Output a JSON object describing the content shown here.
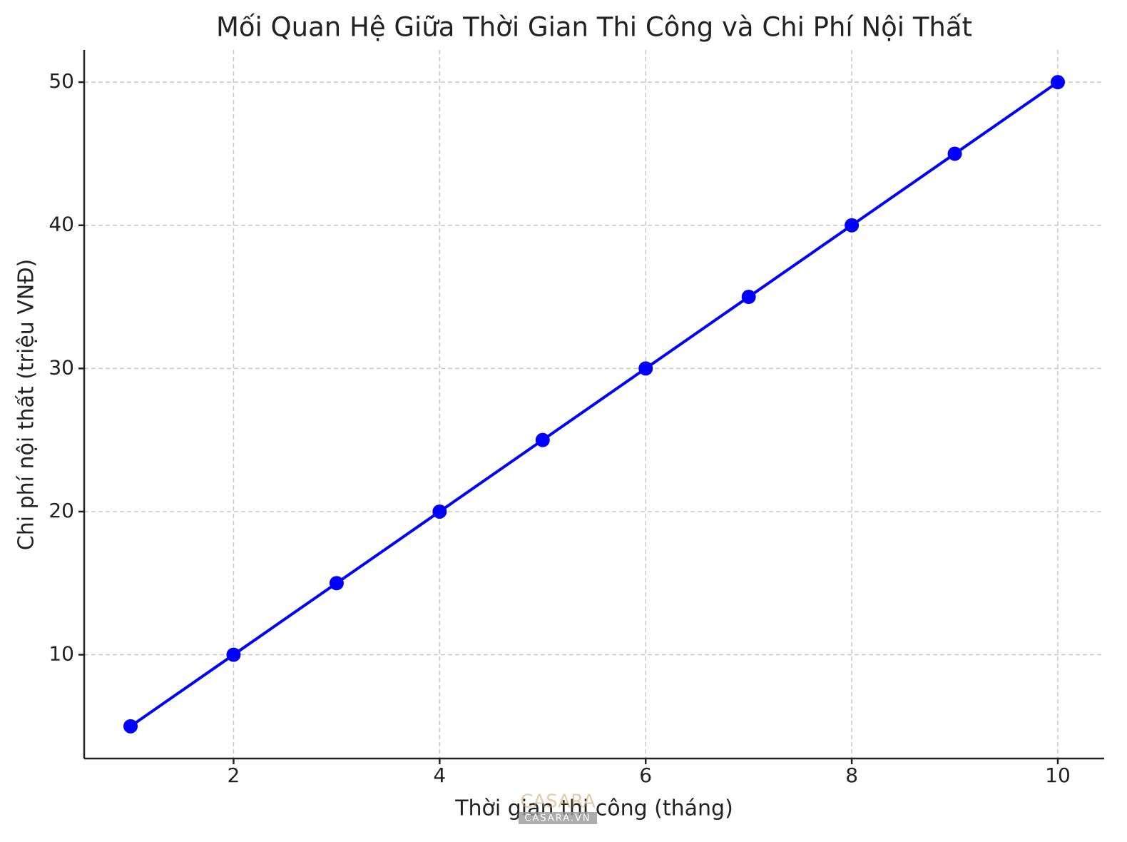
{
  "chart_data": {
    "type": "line",
    "title": "Mối Quan Hệ Giữa Thời Gian Thi Công và Chi Phí Nội Thất",
    "x_label": "Thời gian thi công (tháng)",
    "y_label": "Chi phí nội thất (triệu VNĐ)",
    "x": [
      1,
      2,
      3,
      4,
      5,
      6,
      7,
      8,
      9,
      10
    ],
    "series": [
      {
        "color": "#0000ff",
        "values": [
          5,
          10,
          15,
          20,
          25,
          30,
          35,
          40,
          45,
          50
        ]
      }
    ],
    "xlim": [
      0.55,
      10.45
    ],
    "xticks": [
      2,
      4,
      6,
      8,
      10
    ],
    "ylim": [
      2.75,
      52.25
    ],
    "yticks": [
      10,
      20,
      30,
      40,
      50
    ],
    "grid": true,
    "markers": true
  },
  "watermark": {
    "text": "CASARA",
    "subtext": "CASARA.VN"
  }
}
